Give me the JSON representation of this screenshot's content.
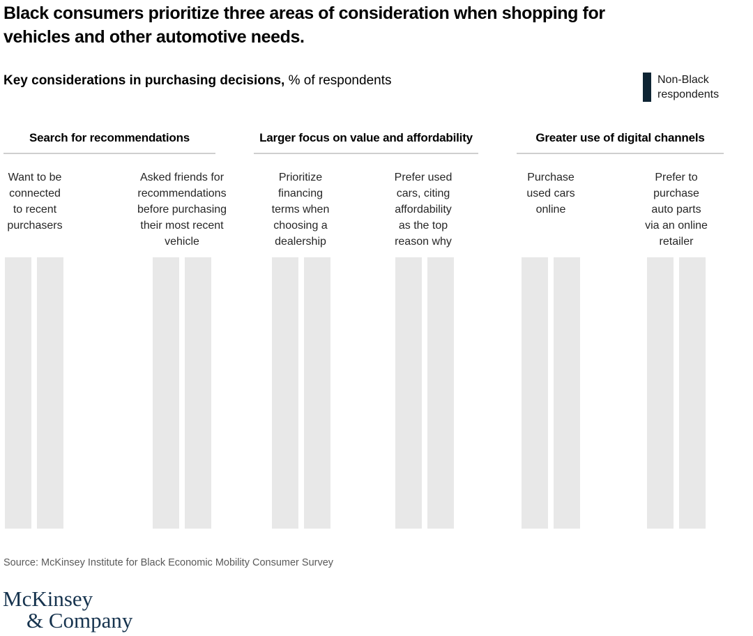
{
  "title": "Black consumers prioritize three areas of consideration when shopping for\nvehicles and other automotive needs.",
  "subtitle": {
    "bold": "Key considerations in purchasing decisions,",
    "regular": " % of respondents"
  },
  "legend": {
    "label": "Non-Black\nrespondents",
    "swatch_color": "#0e2433"
  },
  "sections": [
    {
      "title": "Search for recommendations"
    },
    {
      "title": "Larger focus on value and affordability"
    },
    {
      "title": "Greater use of digital channels"
    }
  ],
  "columns": [
    {
      "label": "Want to be\nconnected\nto recent\npurchasers",
      "section": "Search for recommendations"
    },
    {
      "label": "Asked friends for\nrecommendations\nbefore purchasing\ntheir most recent\nvehicle",
      "section": "Search for recommendations"
    },
    {
      "label": "Prioritize\nfinancing\nterms when\nchoosing a\ndealership",
      "section": "Larger focus on value and affordability"
    },
    {
      "label": "Prefer used\ncars, citing\naffordability\nas the top\nreason why",
      "section": "Larger focus on value and affordability"
    },
    {
      "label": "Purchase\nused cars\nonline",
      "section": "Greater use of digital channels"
    },
    {
      "label": "Prefer to\npurchase\nauto parts\nvia an online\nretailer",
      "section": "Greater use of digital channels"
    }
  ],
  "source": "Source: McKinsey Institute for Black Economic Mobility Consumer Survey",
  "logo": {
    "line1": "McKinsey",
    "line2": "& Company",
    "color": "#16334e"
  },
  "colors": {
    "bar_placeholder": "#e8e8e8",
    "section_underline": "#cfcfcf",
    "legend_swatch": "#0e2433",
    "source_text": "#595959"
  },
  "chart_data": {
    "type": "bar",
    "title": "Key considerations in purchasing decisions",
    "ylabel": "% of respondents",
    "legend_entries_visible": [
      "Non-Black respondents"
    ],
    "legend_position": "top-right",
    "grid": false,
    "axes_labeled": false,
    "groups": [
      {
        "section": "Search for recommendations",
        "categories": [
          "Want to be connected to recent purchasers",
          "Asked friends for recommendations before purchasing their most recent vehicle"
        ]
      },
      {
        "section": "Larger focus on value and affordability",
        "categories": [
          "Prioritize financing terms when choosing a dealership",
          "Prefer used cars, citing affordability as the top reason why"
        ]
      },
      {
        "section": "Greater use of digital channels",
        "categories": [
          "Purchase used cars online",
          "Prefer to purchase auto parts via an online retailer"
        ]
      }
    ],
    "bars_per_category": 2,
    "values_displayed": false,
    "note": "All 12 bars are rendered as uniform light-gray placeholder rectangles of equal height; no numeric values or data labels are visible in the screenshot."
  }
}
